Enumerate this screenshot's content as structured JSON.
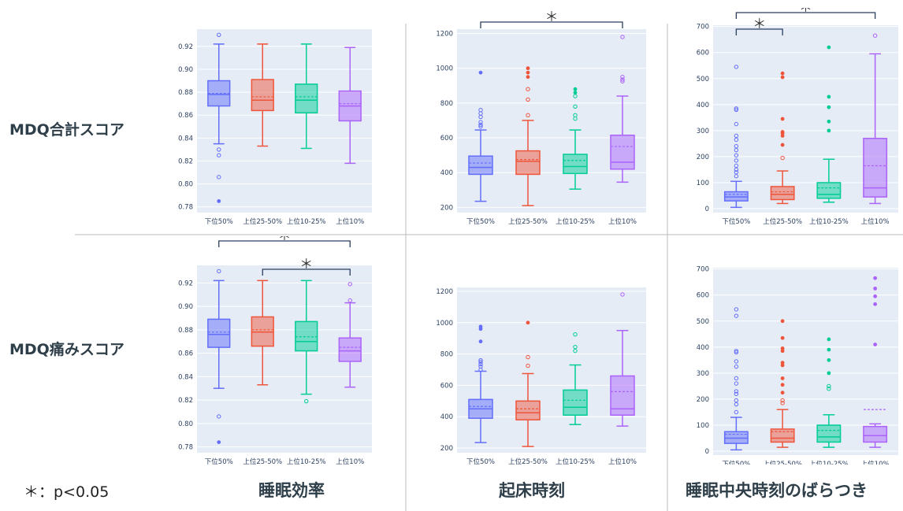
{
  "row_labels": [
    "MDQ合計スコア",
    "MDQ痛みスコア"
  ],
  "column_labels": [
    "睡眠効率",
    "起床時刻",
    "睡眠中央時刻のばらつき"
  ],
  "significance_note": "＊：p<0.05",
  "significance_mark": "＊",
  "colors": {
    "g1": "#636efa",
    "g2": "#ef553b",
    "g3": "#00cc96",
    "g4": "#ab63fa",
    "plot_bg": "#e5ecf6",
    "grid": "#ffffff",
    "divider": "#bbbbbb",
    "bracket": "#2a3f5f"
  },
  "chart_data": [
    {
      "type": "box",
      "row": "MDQ合計スコア",
      "column": "睡眠効率",
      "categories": [
        "下位50%",
        "上位25-50%",
        "上位10-25%",
        "上位10%"
      ],
      "ylim": [
        0.775,
        0.935
      ],
      "yticks": [
        0.78,
        0.8,
        0.82,
        0.84,
        0.86,
        0.88,
        0.9,
        0.92
      ],
      "boxes": [
        {
          "lower_fence": 0.835,
          "q1": 0.868,
          "median": 0.878,
          "mean": 0.879,
          "q3": 0.89,
          "upper_fence": 0.922,
          "outliers_open": [
            0.93,
            0.83,
            0.825,
            0.806
          ],
          "outliers_filled": [
            0.785
          ]
        },
        {
          "lower_fence": 0.833,
          "q1": 0.864,
          "median": 0.873,
          "mean": 0.876,
          "q3": 0.891,
          "upper_fence": 0.922,
          "outliers_open": [],
          "outliers_filled": []
        },
        {
          "lower_fence": 0.831,
          "q1": 0.862,
          "median": 0.873,
          "mean": 0.876,
          "q3": 0.887,
          "upper_fence": 0.922,
          "outliers_open": [],
          "outliers_filled": []
        },
        {
          "lower_fence": 0.818,
          "q1": 0.855,
          "median": 0.868,
          "mean": 0.87,
          "q3": 0.881,
          "upper_fence": 0.919,
          "outliers_open": [],
          "outliers_filled": []
        }
      ],
      "significance": []
    },
    {
      "type": "box",
      "row": "MDQ合計スコア",
      "column": "起床時刻",
      "categories": [
        "下位50%",
        "上位25-50%",
        "上位10-25%",
        "上位10%"
      ],
      "ylim": [
        170,
        1225
      ],
      "yticks": [
        200,
        400,
        600,
        800,
        1000,
        1200
      ],
      "boxes": [
        {
          "lower_fence": 235,
          "q1": 390,
          "median": 430,
          "mean": 455,
          "q3": 495,
          "upper_fence": 645,
          "outliers_open": [
            760,
            740,
            720,
            690,
            675,
            665
          ],
          "outliers_filled": [
            975
          ]
        },
        {
          "lower_fence": 210,
          "q1": 390,
          "median": 465,
          "mean": 475,
          "q3": 525,
          "upper_fence": 700,
          "outliers_open": [
            880,
            820,
            730
          ],
          "outliers_filled": [
            1000,
            975,
            950
          ]
        },
        {
          "lower_fence": 305,
          "q1": 395,
          "median": 435,
          "mean": 470,
          "q3": 505,
          "upper_fence": 645,
          "outliers_open": [
            840,
            780,
            730,
            710
          ],
          "outliers_filled": [
            880,
            860
          ]
        },
        {
          "lower_fence": 345,
          "q1": 420,
          "median": 460,
          "mean": 550,
          "q3": 615,
          "upper_fence": 840,
          "outliers_open": [
            1180,
            950,
            935,
            925
          ],
          "outliers_filled": []
        }
      ],
      "significance": [
        {
          "from": "下位50%",
          "to": "上位10%",
          "label": "＊"
        }
      ]
    },
    {
      "type": "box",
      "row": "MDQ合計スコア",
      "column": "睡眠中央時刻のばらつき",
      "categories": [
        "下位50%",
        "上位25-50%",
        "上位10-25%",
        "上位10%"
      ],
      "ylim": [
        -15,
        705
      ],
      "yticks": [
        0,
        100,
        200,
        300,
        400,
        500,
        600,
        700
      ],
      "boxes": [
        {
          "lower_fence": 5,
          "q1": 30,
          "median": 45,
          "mean": 55,
          "q3": 65,
          "upper_fence": 105,
          "outliers_open": [
            545,
            385,
            380,
            325,
            280,
            265,
            240,
            225,
            205,
            185,
            165,
            150,
            140,
            125
          ],
          "outliers_filled": []
        },
        {
          "lower_fence": 20,
          "q1": 35,
          "median": 55,
          "mean": 65,
          "q3": 85,
          "upper_fence": 145,
          "outliers_open": [
            195
          ],
          "outliers_filled": [
            520,
            505,
            345,
            295,
            290,
            280,
            245
          ]
        },
        {
          "lower_fence": 25,
          "q1": 40,
          "median": 55,
          "mean": 80,
          "q3": 100,
          "upper_fence": 190,
          "outliers_open": [],
          "outliers_filled": [
            620,
            430,
            390,
            335,
            300
          ]
        },
        {
          "lower_fence": 20,
          "q1": 45,
          "median": 80,
          "mean": 165,
          "q3": 270,
          "upper_fence": 595,
          "outliers_open": [
            665
          ],
          "outliers_filled": []
        }
      ],
      "significance": [
        {
          "from": "下位50%",
          "to": "上位10%",
          "label": "＊"
        },
        {
          "from": "下位50%",
          "to": "上位25-50%",
          "label": "＊"
        }
      ]
    },
    {
      "type": "box",
      "row": "MDQ痛みスコア",
      "column": "睡眠効率",
      "categories": [
        "下位50%",
        "上位25-50%",
        "上位10-25%",
        "上位10%"
      ],
      "ylim": [
        0.775,
        0.935
      ],
      "yticks": [
        0.78,
        0.8,
        0.82,
        0.84,
        0.86,
        0.88,
        0.9,
        0.92
      ],
      "boxes": [
        {
          "lower_fence": 0.83,
          "q1": 0.865,
          "median": 0.876,
          "mean": 0.878,
          "q3": 0.889,
          "upper_fence": 0.922,
          "outliers_open": [
            0.93,
            0.806
          ],
          "outliers_filled": [
            0.784
          ]
        },
        {
          "lower_fence": 0.833,
          "q1": 0.866,
          "median": 0.878,
          "mean": 0.88,
          "q3": 0.891,
          "upper_fence": 0.922,
          "outliers_open": [],
          "outliers_filled": []
        },
        {
          "lower_fence": 0.825,
          "q1": 0.862,
          "median": 0.87,
          "mean": 0.874,
          "q3": 0.887,
          "upper_fence": 0.922,
          "outliers_open": [
            0.819
          ],
          "outliers_filled": []
        },
        {
          "lower_fence": 0.831,
          "q1": 0.853,
          "median": 0.862,
          "mean": 0.865,
          "q3": 0.873,
          "upper_fence": 0.903,
          "outliers_open": [
            0.919,
            0.905
          ],
          "outliers_filled": []
        }
      ],
      "significance": [
        {
          "from": "下位50%",
          "to": "上位10%",
          "label": "＊"
        },
        {
          "from": "上位25-50%",
          "to": "上位10%",
          "label": "＊"
        }
      ]
    },
    {
      "type": "box",
      "row": "MDQ痛みスコア",
      "column": "起床時刻",
      "categories": [
        "下位50%",
        "上位25-50%",
        "上位10-25%",
        "上位10%"
      ],
      "ylim": [
        170,
        1225
      ],
      "yticks": [
        200,
        400,
        600,
        800,
        1000,
        1200
      ],
      "boxes": [
        {
          "lower_fence": 235,
          "q1": 390,
          "median": 450,
          "mean": 465,
          "q3": 510,
          "upper_fence": 690,
          "outliers_open": [
            760,
            750,
            735,
            720,
            700
          ],
          "outliers_filled": [
            975,
            960,
            880
          ]
        },
        {
          "lower_fence": 210,
          "q1": 380,
          "median": 425,
          "mean": 450,
          "q3": 500,
          "upper_fence": 675,
          "outliers_open": [
            780,
            725
          ],
          "outliers_filled": [
            1000
          ]
        },
        {
          "lower_fence": 350,
          "q1": 410,
          "median": 460,
          "mean": 505,
          "q3": 570,
          "upper_fence": 730,
          "outliers_open": [
            925,
            845,
            820
          ],
          "outliers_filled": []
        },
        {
          "lower_fence": 340,
          "q1": 410,
          "median": 450,
          "mean": 560,
          "q3": 660,
          "upper_fence": 950,
          "outliers_open": [
            1180
          ],
          "outliers_filled": []
        }
      ],
      "significance": []
    },
    {
      "type": "box",
      "row": "MDQ痛みスコア",
      "column": "睡眠中央時刻のばらつき",
      "categories": [
        "下位50%",
        "上位25-50%",
        "上位10-25%",
        "上位10%"
      ],
      "ylim": [
        -15,
        705
      ],
      "yticks": [
        0,
        100,
        200,
        300,
        400,
        500,
        600,
        700
      ],
      "boxes": [
        {
          "lower_fence": 5,
          "q1": 30,
          "median": 50,
          "mean": 65,
          "q3": 75,
          "upper_fence": 130,
          "outliers_open": [
            545,
            520,
            385,
            380,
            345,
            325,
            280,
            260,
            230,
            220,
            195,
            180,
            150
          ],
          "outliers_filled": []
        },
        {
          "lower_fence": 15,
          "q1": 35,
          "median": 50,
          "mean": 75,
          "q3": 85,
          "upper_fence": 160,
          "outliers_open": [
            195,
            185
          ],
          "outliers_filled": [
            500,
            435,
            395,
            385,
            340,
            330,
            280,
            255,
            225
          ]
        },
        {
          "lower_fence": 15,
          "q1": 35,
          "median": 55,
          "mean": 80,
          "q3": 100,
          "upper_fence": 140,
          "outliers_open": [
            250,
            240
          ],
          "outliers_filled": [
            430,
            390,
            350,
            300
          ]
        },
        {
          "lower_fence": 15,
          "q1": 35,
          "median": 60,
          "mean": 160,
          "q3": 95,
          "upper_fence": 105,
          "outliers_open": [],
          "outliers_filled": [
            665,
            625,
            595,
            565,
            410
          ]
        }
      ],
      "significance": []
    }
  ]
}
